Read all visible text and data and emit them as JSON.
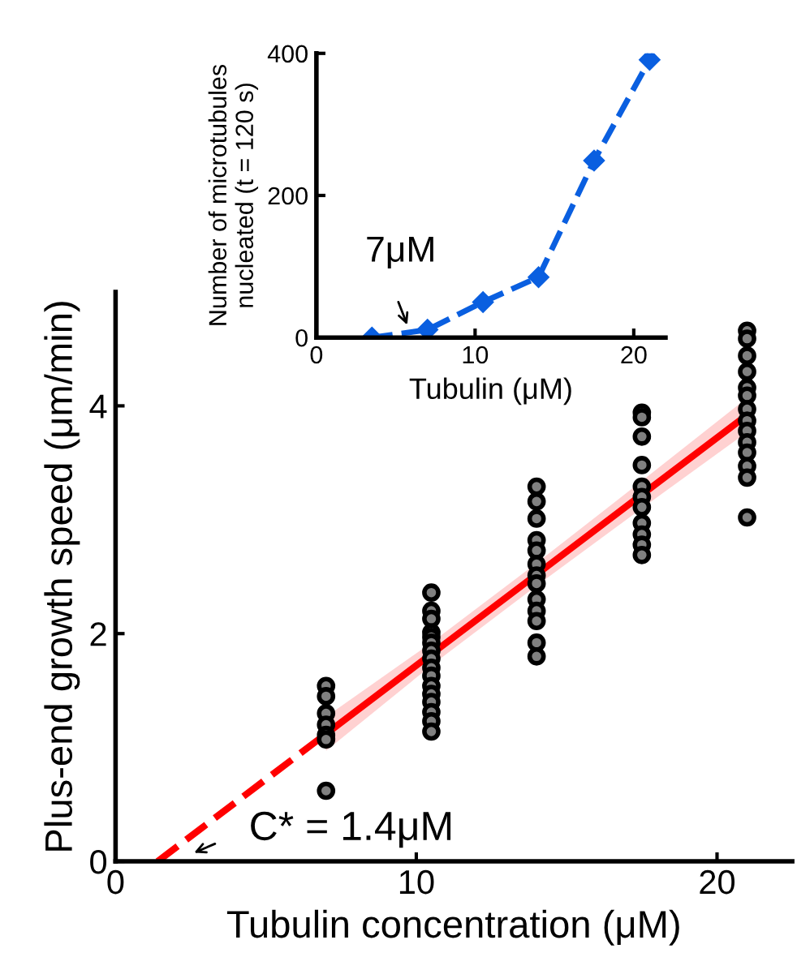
{
  "chart_data": [
    {
      "type": "scatter",
      "xlabel": "Tubulin concentration (μM)",
      "ylabel": "Plus-end growth speed (μm/min)",
      "xlim": [
        0,
        22.5
      ],
      "ylim": [
        0,
        5
      ],
      "xticks": [
        0,
        10,
        20
      ],
      "yticks": [
        0,
        2,
        4
      ],
      "grid": false,
      "legend": false,
      "marker": "circle",
      "annotations": [
        "C* = 1.4μM"
      ],
      "series": [
        {
          "color": "#808080",
          "x": [
            7,
            7,
            7,
            7,
            7,
            7,
            7,
            10.5,
            10.5,
            10.5,
            10.5,
            10.5,
            10.5,
            10.5,
            10.5,
            10.5,
            10.5,
            10.5,
            10.5,
            10.5,
            10.5,
            10.5,
            10.5,
            14,
            14,
            14,
            14,
            14,
            14,
            14,
            14,
            14,
            14,
            14,
            14,
            14,
            17.5,
            17.5,
            17.5,
            17.5,
            17.5,
            17.5,
            17.5,
            17.5,
            17.5,
            17.5,
            17.5,
            21,
            21,
            21,
            21,
            21,
            21,
            21,
            21,
            21,
            21,
            21,
            21,
            21,
            21
          ],
          "values": [
            1.54,
            1.45,
            1.3,
            1.2,
            1.11,
            1.07,
            0.62,
            2.36,
            2.2,
            2.13,
            2.01,
            1.97,
            1.92,
            1.85,
            1.78,
            1.7,
            1.63,
            1.54,
            1.47,
            1.4,
            1.31,
            1.23,
            1.14,
            3.29,
            3.16,
            3.01,
            2.82,
            2.73,
            2.61,
            2.51,
            2.44,
            2.3,
            2.2,
            2.11,
            1.92,
            1.8,
            3.94,
            3.9,
            3.73,
            3.48,
            3.29,
            3.2,
            3.11,
            2.97,
            2.87,
            2.78,
            2.69,
            4.66,
            4.59,
            4.44,
            4.3,
            4.16,
            4.09,
            3.97,
            3.87,
            3.78,
            3.68,
            3.59,
            3.47,
            3.37,
            3.02
          ]
        },
        {
          "type": "line",
          "color": "#ff0000",
          "line_style": "solid",
          "marker": "none",
          "x": [
            7,
            10.5,
            14,
            17.5,
            21
          ],
          "values": [
            1.12,
            1.82,
            2.52,
            3.22,
            3.92
          ],
          "lower": [
            0.97,
            1.72,
            2.42,
            3.1,
            3.77
          ],
          "upper": [
            1.27,
            1.92,
            2.62,
            3.34,
            4.07
          ]
        },
        {
          "type": "line",
          "color": "#ff0000",
          "line_style": "dashed",
          "marker": "none",
          "x": [
            1.4,
            7
          ],
          "values": [
            0,
            1.12
          ]
        }
      ]
    },
    {
      "type": "line",
      "xlabel": "Tubulin (μM)",
      "ylabel": "Number of microtubules\nnucleated (t = 120 s)",
      "xlim": [
        0,
        22
      ],
      "ylim": [
        0,
        400
      ],
      "xticks": [
        0,
        10,
        20
      ],
      "yticks": [
        0,
        200,
        400
      ],
      "grid": false,
      "legend": false,
      "annotations": [
        "7μM"
      ],
      "marker": "diamond",
      "series": [
        {
          "color": "#0a5fe0",
          "line_style": "dashed",
          "x": [
            3.5,
            7,
            10.5,
            14,
            17.5,
            21
          ],
          "values": [
            0,
            11,
            50,
            85,
            249,
            391
          ]
        }
      ]
    }
  ]
}
